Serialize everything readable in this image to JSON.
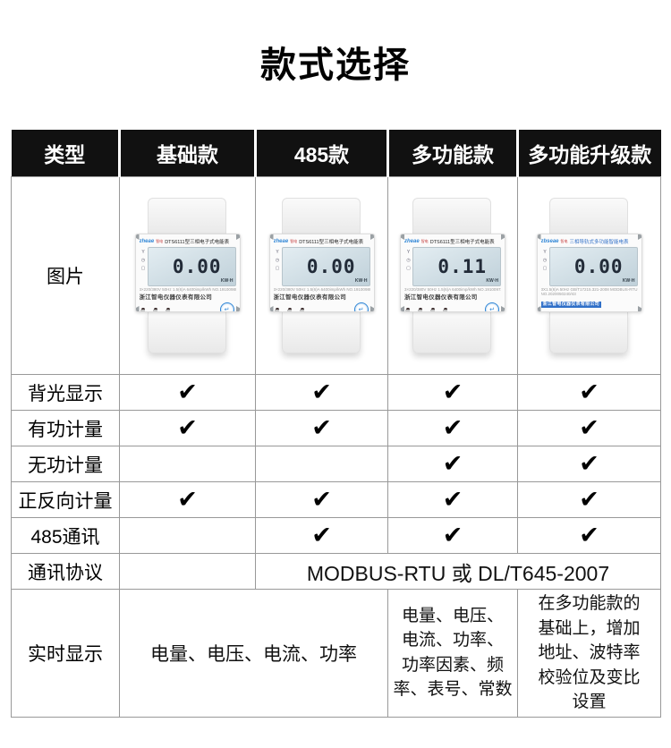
{
  "page": {
    "title": "款式选择"
  },
  "icons": {
    "checkmark": "✔",
    "meter_side_symbols": [
      "Y",
      "◷",
      "▢"
    ]
  },
  "table": {
    "header": [
      "类型",
      "基础款",
      "485款",
      "多功能款",
      "多功能升级款"
    ],
    "picture_row_label": "图片",
    "features": [
      {
        "label": "背光显示",
        "values": [
          true,
          true,
          true,
          true
        ]
      },
      {
        "label": "有功计量",
        "values": [
          true,
          true,
          true,
          true
        ]
      },
      {
        "label": "无功计量",
        "values": [
          false,
          false,
          true,
          true
        ]
      },
      {
        "label": "正反向计量",
        "values": [
          true,
          true,
          true,
          true
        ]
      },
      {
        "label": "485通讯",
        "values": [
          false,
          true,
          true,
          true
        ]
      }
    ],
    "protocol": {
      "label": "通讯协议",
      "value": "MODBUS-RTU 或 DL/T645-2007"
    },
    "realtime": {
      "label": "实时显示",
      "basic_and_485": "电量、电压、电流、功率",
      "multifunction": "电量、电压、\n电流、功率、\n功率因素、频\n率、表号、常数",
      "upgraded": "在多功能款的\n基础上，增加\n地址、波特率\n校验位及变比\n设置"
    }
  },
  "meters": [
    {
      "variant": "standard",
      "brand": "zheae",
      "brand_sub": "智电",
      "title": "DTS6111型三相电子式电能表",
      "lcd_value": "0.00",
      "lcd_unit": "KW·H",
      "spec_lines": "3×220/380V 50Hz 1.5(6)A 6400imp/kWh NO.19100980",
      "company": "浙江智电仪器仪表有限公司",
      "indicator_dots": 3,
      "buttons": [
        "↵"
      ]
    },
    {
      "variant": "standard",
      "brand": "zheae",
      "brand_sub": "智电",
      "title": "DTS6111型三相电子式电能表",
      "lcd_value": "0.00",
      "lcd_unit": "KW·H",
      "spec_lines": "3×220/380V 50Hz 1.5(6)A 6400imp/kWh NO.19100980",
      "company": "浙江智电仪器仪表有限公司",
      "indicator_dots": 3,
      "buttons": [
        "↵"
      ]
    },
    {
      "variant": "standard",
      "brand": "zheae",
      "brand_sub": "智电",
      "title": "DTS6111型三相电子式电能表",
      "lcd_value": "0.11",
      "lcd_unit": "KW·H",
      "spec_lines": "3×220/380V 50Hz 1.5(6)A 6400imp/kWh NO.19100973",
      "company": "浙江智电仪器仪表有限公司",
      "indicator_dots": 4,
      "buttons": [
        "↵"
      ]
    },
    {
      "variant": "multifunction",
      "brand": "zbseae",
      "brand_sub": "智电",
      "title": "三相导轨式多功能智能电表",
      "lcd_value": "0.00",
      "lcd_unit": "KW·H",
      "spec_lines": "3X1.5(6)A 50Hz GB/T17215.321-2008 MODBUS-RTU\nNO.2020050240/43",
      "company": "浙江智电仪器仪表有限公司",
      "indicator_dots": 2,
      "buttons": [
        "SET",
        "↵",
        "◀"
      ]
    }
  ]
}
